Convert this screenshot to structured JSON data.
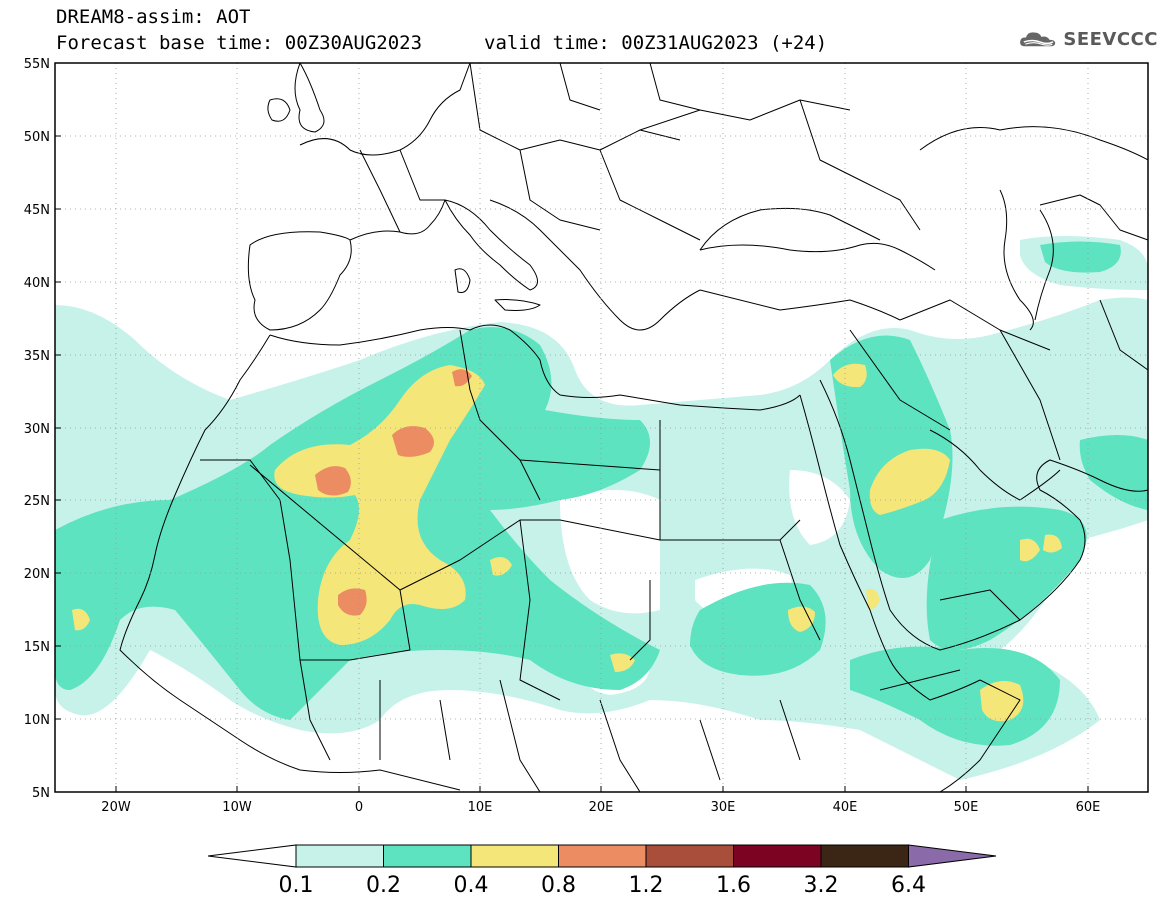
{
  "header": {
    "title": "DREAM8-assim: AOT",
    "base_time": "Forecast base time: 00Z30AUG2023",
    "valid_time": "valid time: 00Z31AUG2023 (+24)"
  },
  "logo": {
    "text": "SEEVCCC",
    "icon": "cloud-logo-icon"
  },
  "axes": {
    "lat_labels": [
      "55N",
      "50N",
      "45N",
      "40N",
      "35N",
      "30N",
      "25N",
      "20N",
      "15N",
      "10N",
      "5N"
    ],
    "lon_labels": [
      "20W",
      "10W",
      "0",
      "10E",
      "20E",
      "30E",
      "40E",
      "50E",
      "60E"
    ]
  },
  "colorbar": {
    "labels": [
      "0.1",
      "0.2",
      "0.4",
      "0.8",
      "1.2",
      "1.6",
      "3.2",
      "6.4"
    ],
    "colors": {
      "below": "#ffffff",
      "b1": "#c6f2ea",
      "b2": "#5de3c0",
      "b3": "#f5e679",
      "b4": "#eb8c62",
      "b5": "#aa4e3c",
      "b6": "#7d0323",
      "b7": "#3b2615",
      "above": "#8b6aa9"
    }
  }
}
